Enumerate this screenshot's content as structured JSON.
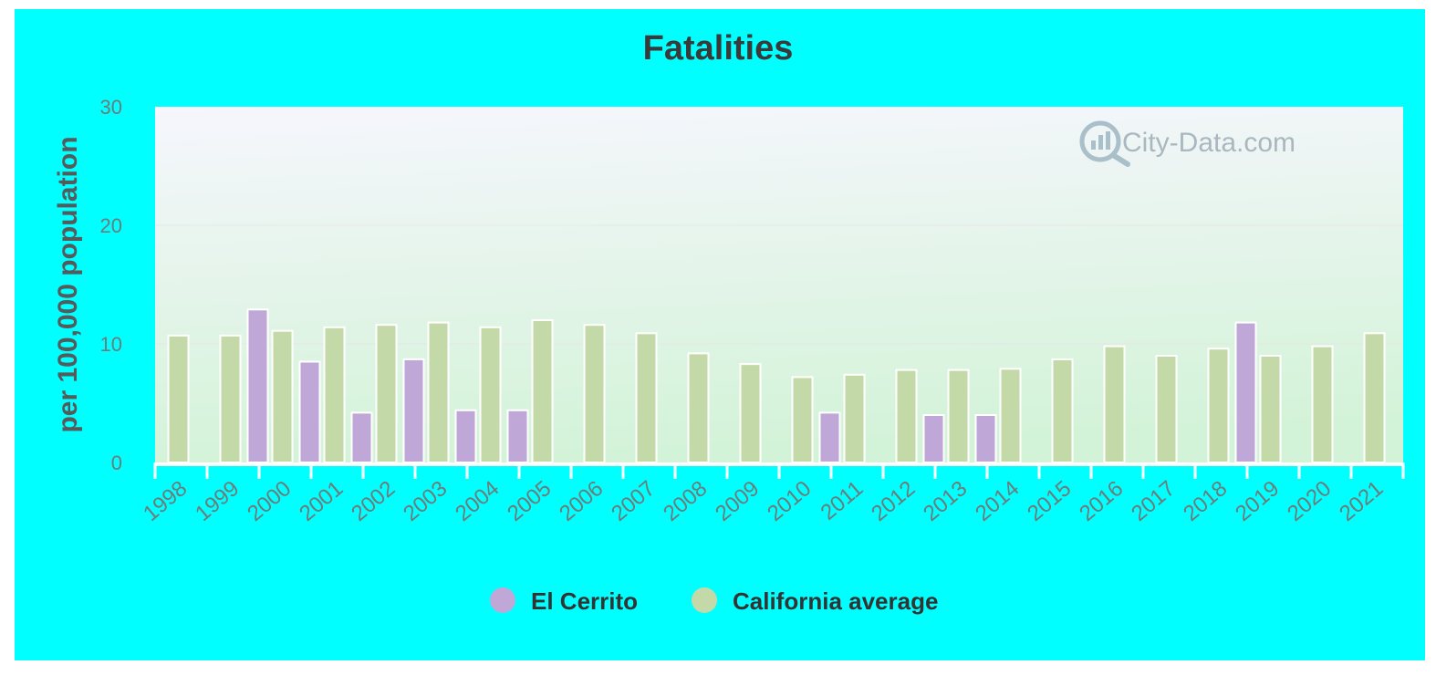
{
  "chart_data": {
    "type": "bar",
    "title": "Fatalities",
    "ylabel": "per 100,000 population",
    "xlabel": "",
    "ylim": [
      0,
      30
    ],
    "yticks": [
      0,
      10,
      20,
      30
    ],
    "grid": true,
    "legend_position": "bottom",
    "categories": [
      "1998",
      "1999",
      "2000",
      "2001",
      "2002",
      "2003",
      "2004",
      "2005",
      "2006",
      "2007",
      "2008",
      "2009",
      "2010",
      "2011",
      "2012",
      "2013",
      "2014",
      "2015",
      "2016",
      "2017",
      "2018",
      "2019",
      "2020",
      "2021"
    ],
    "series": [
      {
        "name": "El Cerrito",
        "color": "#bfa8d8",
        "values": [
          null,
          null,
          12.9,
          8.5,
          4.2,
          8.7,
          4.4,
          4.4,
          null,
          null,
          null,
          null,
          null,
          4.2,
          null,
          4.0,
          4.0,
          null,
          null,
          null,
          null,
          11.8,
          null,
          null
        ]
      },
      {
        "name": "California average",
        "color": "#c4d9a8",
        "values": [
          10.7,
          10.7,
          11.1,
          11.4,
          11.6,
          11.8,
          11.4,
          12.0,
          11.6,
          10.9,
          9.2,
          8.3,
          7.2,
          7.4,
          7.8,
          7.8,
          7.9,
          8.7,
          9.8,
          9.0,
          9.6,
          9.0,
          9.8,
          10.9
        ]
      }
    ]
  },
  "watermark": "City-Data.com",
  "colors": {
    "background": "#00ffff",
    "plot_top": "#f6f6fd",
    "plot_bottom": "#d3f3d8"
  }
}
